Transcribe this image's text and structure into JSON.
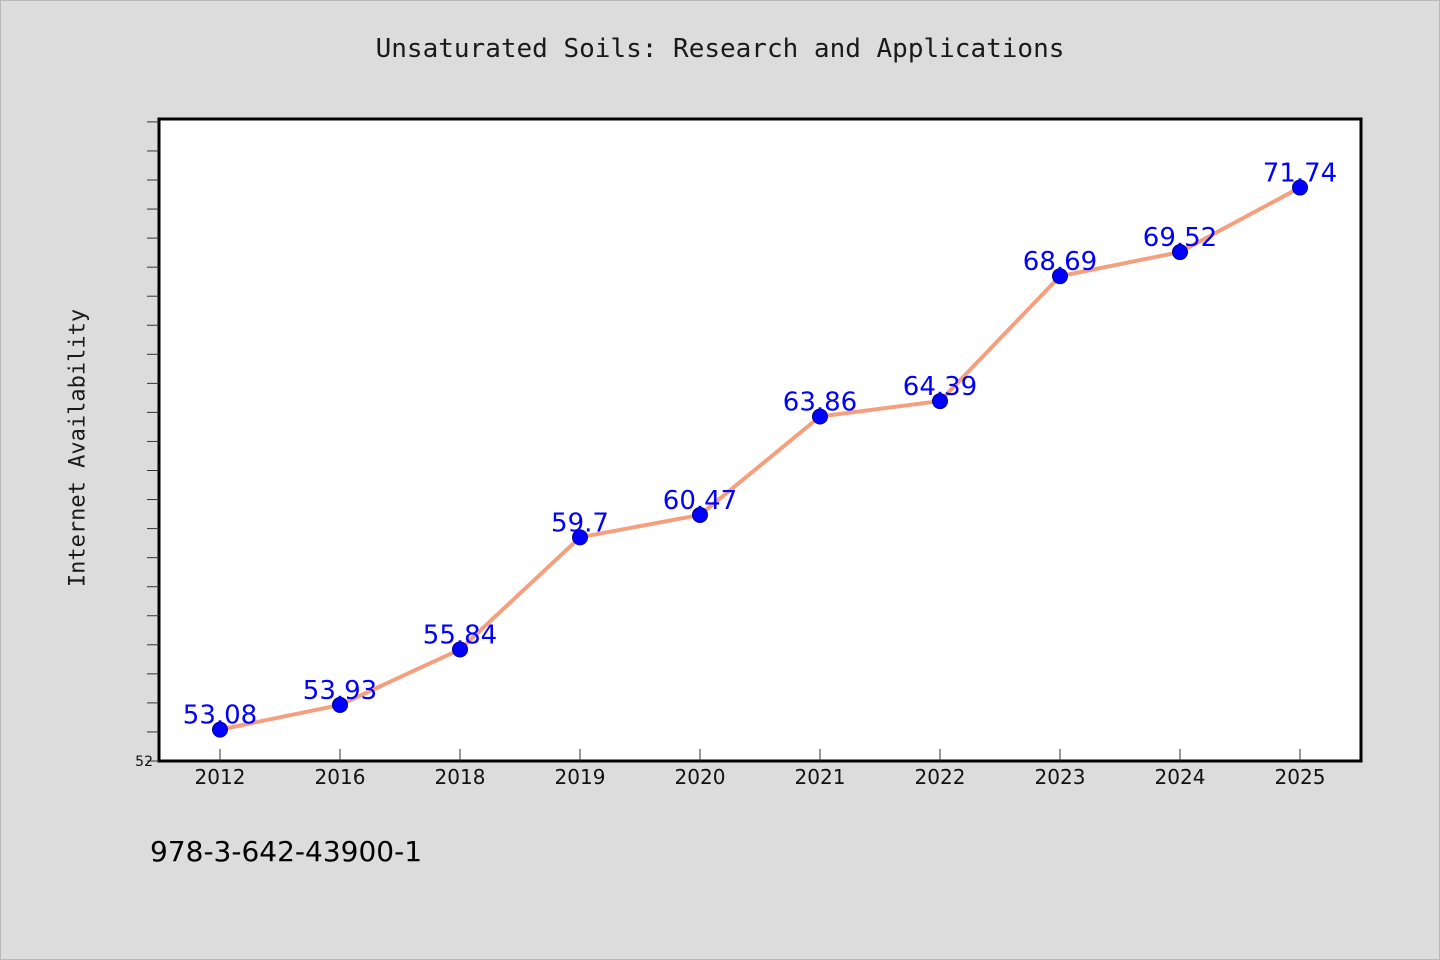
{
  "chart_data": {
    "type": "line",
    "title": "Unsaturated Soils: Research and Applications",
    "xlabel": "",
    "ylabel": "Internet Availability",
    "categories": [
      "2012",
      "2016",
      "2018",
      "2019",
      "2020",
      "2021",
      "2022",
      "2023",
      "2024",
      "2025"
    ],
    "values": [
      53.08,
      53.93,
      55.84,
      59.7,
      60.47,
      63.86,
      64.39,
      68.69,
      69.52,
      71.74
    ],
    "data_labels": [
      "53.08",
      "53.93",
      "55.84",
      "59.7",
      "60.47",
      "63.86",
      "64.39",
      "68.69",
      "69.52",
      "71.74"
    ],
    "ylim": [
      52,
      74.1
    ],
    "y_tick_labels": [
      "52"
    ],
    "grid": false,
    "legend": "none",
    "colors": {
      "line": "#f4a07f",
      "marker": "#0000ff",
      "label": "#0000ff",
      "background": "#dcdcdc",
      "plot": "#ffffff"
    }
  },
  "footer": {
    "isbn": "978-3-642-43900-1"
  }
}
